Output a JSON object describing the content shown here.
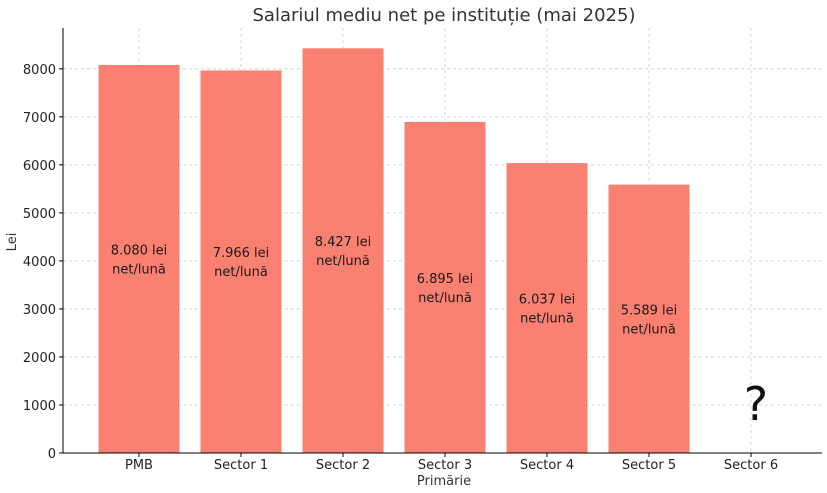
{
  "chart_data": {
    "type": "bar",
    "title": "Salariul mediu net pe instituție (mai 2025)",
    "xlabel": "Primărie",
    "ylabel": "Lei",
    "categories": [
      "PMB",
      "Sector 1",
      "Sector 2",
      "Sector 3",
      "Sector 4",
      "Sector 5",
      "Sector 6"
    ],
    "values": [
      8080,
      7966,
      8427,
      6895,
      6037,
      5589,
      null
    ],
    "data_labels": [
      [
        "8.080 lei",
        "net/lună"
      ],
      [
        "7.966 lei",
        "net/lună"
      ],
      [
        "8.427 lei",
        "net/lună"
      ],
      [
        "6.895 lei",
        "net/lună"
      ],
      [
        "6.037 lei",
        "net/lună"
      ],
      [
        "5.589 lei",
        "net/lună"
      ],
      [
        "?"
      ]
    ],
    "yticks": [
      0,
      1000,
      2000,
      3000,
      4000,
      5000,
      6000,
      7000,
      8000
    ],
    "ylim": [
      0,
      8850
    ],
    "grid": true,
    "bar_color": "#fa8072"
  }
}
